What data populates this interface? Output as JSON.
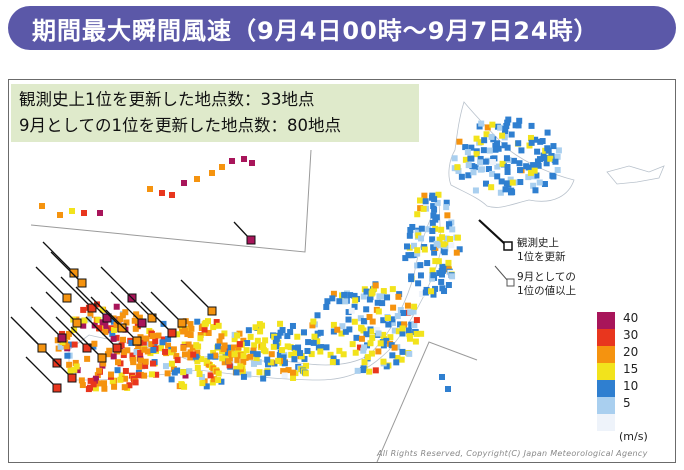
{
  "header": {
    "title": "期間最大瞬間風速（9月4日00時～9月7日24時）"
  },
  "summary": {
    "line1": "観測史上1位を更新した地点数：33地点",
    "line2": "9月としての1位を更新した地点数：80地点"
  },
  "key": {
    "record_line1": "観測史上",
    "record_line2": "1位を更新",
    "sept_line1": "9月としての",
    "sept_line2": "1位の値以上"
  },
  "legend": {
    "unit": "(m/s)",
    "items": [
      {
        "label": "40",
        "color": "#a8155a"
      },
      {
        "label": "30",
        "color": "#e8361e"
      },
      {
        "label": "20",
        "color": "#f5930f"
      },
      {
        "label": "15",
        "color": "#f2e31c"
      },
      {
        "label": "10",
        "color": "#2f7fd0"
      },
      {
        "label": "5",
        "color": "#a9cfef"
      },
      {
        "label": "",
        "color": "#eef3fa"
      }
    ]
  },
  "copyright": "All Rights Reserved, Copyright(C) Japan Meteorological Agency"
}
